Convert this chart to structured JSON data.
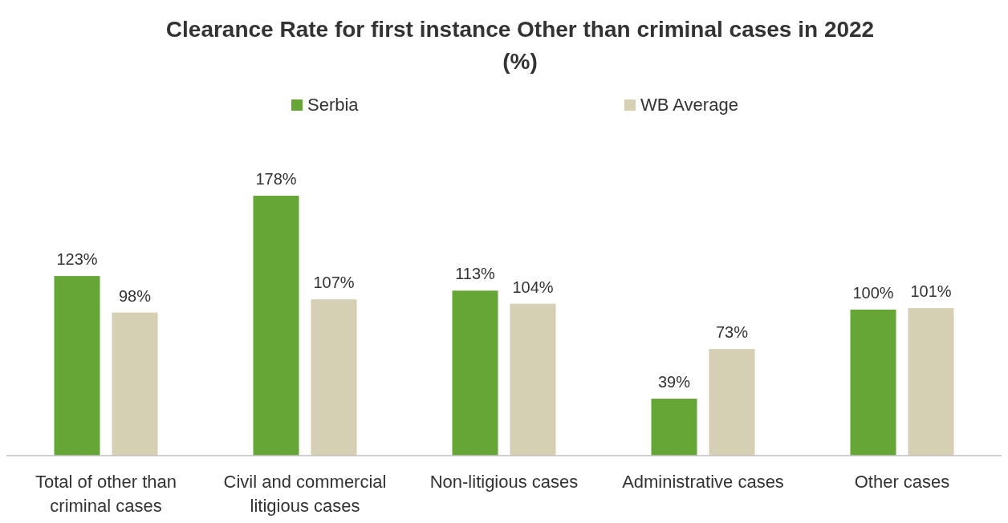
{
  "chart_data": {
    "type": "bar",
    "title": "Clearance Rate for first instance Other than criminal cases in 2022 (%)",
    "categories": [
      "Total of other than criminal cases",
      "Civil and commercial litigious cases",
      "Non-litigious cases",
      "Administrative cases",
      "Other cases"
    ],
    "series": [
      {
        "name": "Serbia",
        "color": "#66a636",
        "values": [
          123,
          178,
          113,
          39,
          100
        ],
        "value_labels": [
          "123%",
          "178%",
          "113%",
          "39%",
          "100%"
        ]
      },
      {
        "name": "WB Average",
        "color": "#d5cfb4",
        "values": [
          98,
          107,
          104,
          73,
          101
        ],
        "value_labels": [
          "98%",
          "107%",
          "104%",
          "73%",
          "101%"
        ]
      }
    ],
    "legend": "top"
  }
}
